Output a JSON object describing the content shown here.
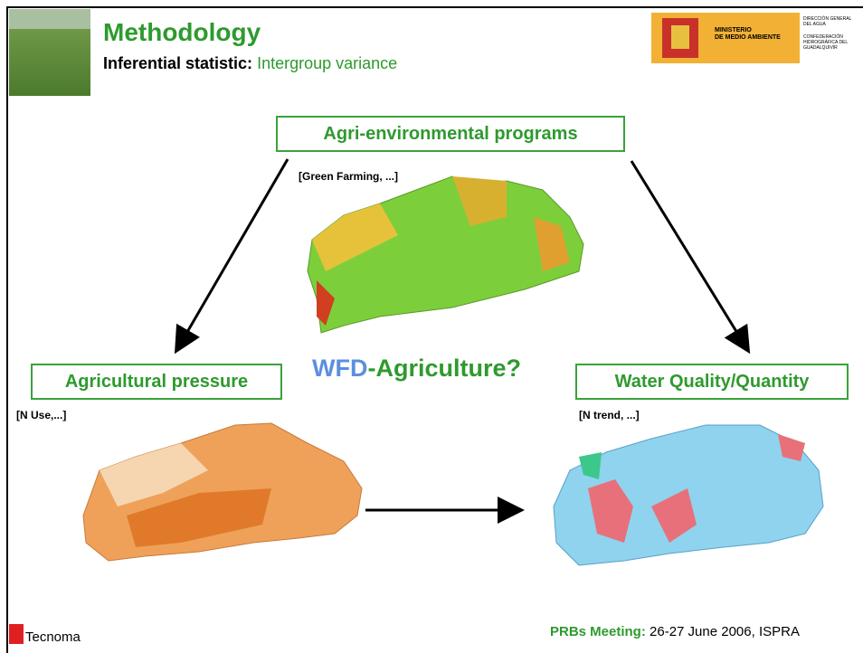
{
  "header": {
    "title": "Methodology",
    "subtitle_label": "Inferential statistic:",
    "subtitle_value": "Intergroup variance",
    "logo": {
      "ministry": [
        "MINISTERIO",
        "DE MEDIO AMBIENTE"
      ],
      "direction": [
        "DIRECCIÓN GENERAL",
        "DEL AGUA"
      ],
      "confederation": [
        "CONFEDERACIÓN",
        "HIDROGRÁFICA DEL",
        "GUADALQUIVIR"
      ]
    }
  },
  "nodes": [
    {
      "label": "Agri-environmental programs",
      "note": "[Green Farming, ...]"
    },
    {
      "label": "Agricultural pressure",
      "note": "[N Use,...]"
    },
    {
      "label": "Water Quality/Quantity",
      "note": "[N trend, ...]"
    }
  ],
  "center": {
    "prefix": "WFD",
    "text": "-Agriculture?"
  },
  "footer": {
    "company": "Tecnoma",
    "event_label": "PRBs Meeting:",
    "event_value": "26-27 June 2006, ISPRA"
  }
}
